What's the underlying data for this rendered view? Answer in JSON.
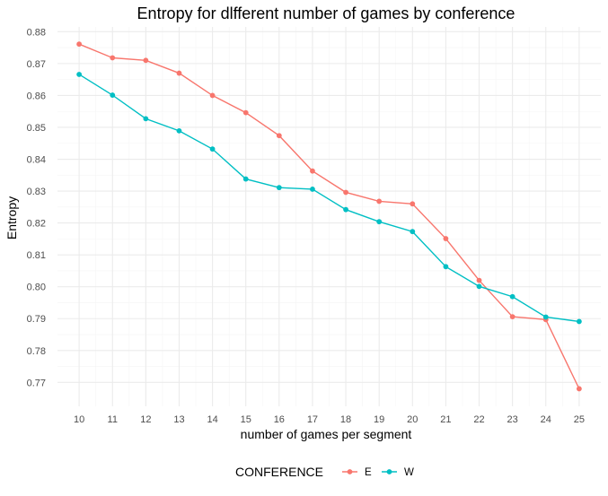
{
  "chart_data": {
    "type": "line",
    "title": "Entropy for dlfferent number of games by conference",
    "xlabel": "number of games per segment",
    "ylabel": "Entropy",
    "x": [
      10,
      11,
      12,
      13,
      14,
      15,
      16,
      17,
      18,
      19,
      20,
      21,
      22,
      23,
      24,
      25
    ],
    "xlim": [
      9.35,
      25.65
    ],
    "ylim": [
      0.7625,
      0.8815
    ],
    "yticks": [
      0.77,
      0.78,
      0.79,
      0.8,
      0.81,
      0.82,
      0.83,
      0.84,
      0.85,
      0.86,
      0.87,
      0.88
    ],
    "ytick_labels": [
      "0.77",
      "0.78",
      "0.79",
      "0.80",
      "0.81",
      "0.82",
      "0.83",
      "0.84",
      "0.85",
      "0.86",
      "0.87",
      "0.88"
    ],
    "grid": true,
    "legend_position": "bottom",
    "legend_title": "CONFERENCE",
    "series": [
      {
        "name": "E",
        "color": "#F8766D",
        "values": [
          0.8761,
          0.8718,
          0.871,
          0.867,
          0.86,
          0.8546,
          0.8474,
          0.8363,
          0.8296,
          0.8268,
          0.826,
          0.8151,
          0.802,
          0.7906,
          0.7897,
          0.768
        ]
      },
      {
        "name": "W",
        "color": "#00BFC4",
        "values": [
          0.8666,
          0.8601,
          0.8527,
          0.8489,
          0.8432,
          0.8338,
          0.8311,
          0.8306,
          0.8242,
          0.8204,
          0.8173,
          0.8063,
          0.8001,
          0.7969,
          0.7905,
          0.7891
        ]
      }
    ]
  }
}
